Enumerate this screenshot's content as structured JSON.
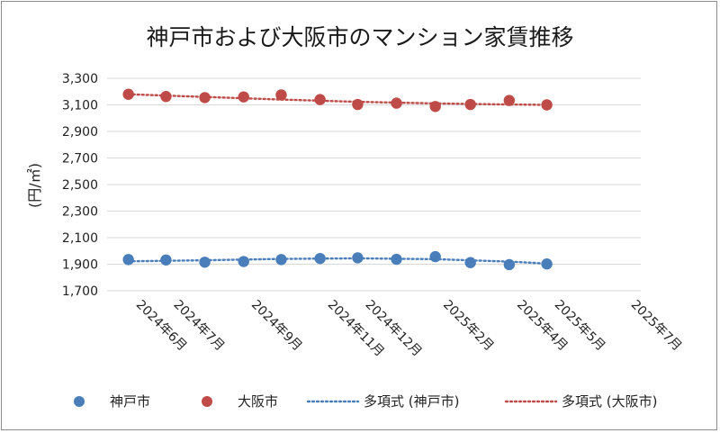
{
  "chart_data": {
    "type": "scatter",
    "title": "神戸市および大阪市のマンション家賃推移",
    "ylabel": "(円/㎡)",
    "xlabel": "",
    "ylim": [
      1700,
      3300
    ],
    "yticks": [
      "1,700",
      "1,900",
      "2,100",
      "2,300",
      "2,500",
      "2,700",
      "2,900",
      "3,100",
      "3,300"
    ],
    "yticks_values": [
      1700,
      1900,
      2100,
      2300,
      2500,
      2700,
      2900,
      3100,
      3300
    ],
    "xlim": [
      "2024-05-15",
      "2025-07-15"
    ],
    "xticks": [
      "2024年6月",
      "2024年7月",
      "2024年9月",
      "2024年11月",
      "2024年12月",
      "2025年2月",
      "2025年4月",
      "2025年5月",
      "2025年7月"
    ],
    "xticks_dates": [
      "2024-06-01",
      "2024-07-01",
      "2024-09-01",
      "2024-11-01",
      "2024-12-01",
      "2025-02-01",
      "2025-04-01",
      "2025-05-01",
      "2025-07-01"
    ],
    "grid": true,
    "legend_position": "bottom",
    "series": [
      {
        "name": "神戸市",
        "color": "#4a7ebb",
        "x": [
          "2024-06-01",
          "2024-07-01",
          "2024-08-01",
          "2024-09-01",
          "2024-10-01",
          "2024-11-01",
          "2024-12-01",
          "2025-01-01",
          "2025-02-01",
          "2025-03-01",
          "2025-04-01",
          "2025-05-01"
        ],
        "values": [
          1935,
          1932,
          1915,
          1920,
          1935,
          1943,
          1948,
          1937,
          1957,
          1912,
          1897,
          1902
        ]
      },
      {
        "name": "大阪市",
        "color": "#be4b48",
        "x": [
          "2024-06-01",
          "2024-07-01",
          "2024-08-01",
          "2024-09-01",
          "2024-10-01",
          "2024-11-01",
          "2024-12-01",
          "2025-01-01",
          "2025-02-01",
          "2025-03-01",
          "2025-04-01",
          "2025-05-01"
        ],
        "values": [
          3180,
          3163,
          3155,
          3160,
          3175,
          3140,
          3103,
          3113,
          3088,
          3103,
          3133,
          3100
        ]
      }
    ],
    "trendlines": [
      {
        "name": "多項式 (神戸市)",
        "color": "#4a7ebb",
        "style": "dotted",
        "x": [
          "2024-06-01",
          "2024-08-01",
          "2024-10-01",
          "2024-12-01",
          "2025-02-01",
          "2025-04-01",
          "2025-05-01"
        ],
        "values": [
          1922,
          1930,
          1940,
          1944,
          1938,
          1920,
          1905
        ]
      },
      {
        "name": "多項式 (大阪市)",
        "color": "#be4b48",
        "style": "dotted",
        "x": [
          "2024-06-01",
          "2024-08-01",
          "2024-10-01",
          "2024-12-01",
          "2025-02-01",
          "2025-04-01",
          "2025-05-01"
        ],
        "values": [
          3180,
          3160,
          3140,
          3123,
          3111,
          3103,
          3100
        ]
      }
    ]
  }
}
